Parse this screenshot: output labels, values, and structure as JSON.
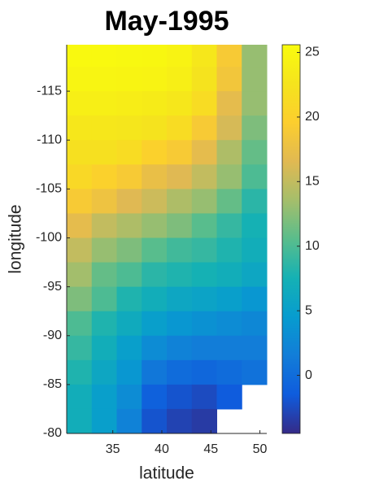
{
  "chart_data": {
    "type": "heatmap",
    "title": "May-1995",
    "xlabel": "latitude",
    "ylabel": "longitude",
    "x": [
      31.6,
      34.1,
      36.7,
      39.2,
      41.8,
      44.3,
      46.9,
      49.4
    ],
    "y": [
      -118.75,
      -116.25,
      -113.75,
      -111.25,
      -108.75,
      -106.25,
      -103.75,
      -101.25,
      -98.75,
      -96.25,
      -93.75,
      -91.25,
      -88.75,
      -86.25,
      -83.75,
      -81.25
    ],
    "z": [
      [
        25.3,
        25.3,
        25.2,
        25.1,
        24.5,
        23,
        19,
        13
      ],
      [
        24.8,
        24.8,
        24.7,
        24.6,
        24,
        22.5,
        18.5,
        13
      ],
      [
        24,
        24,
        23.8,
        23.5,
        23,
        21.5,
        17,
        13
      ],
      [
        23,
        23,
        22.8,
        22.5,
        21.5,
        19,
        16,
        12
      ],
      [
        22,
        22,
        21.5,
        20,
        19,
        17,
        14,
        11
      ],
      [
        21,
        20,
        19,
        17.5,
        16.5,
        15,
        13,
        10
      ],
      [
        19,
        18,
        16.5,
        15.5,
        14,
        13,
        11,
        8.5
      ],
      [
        17,
        15,
        14,
        13,
        12,
        10.5,
        9,
        7.5
      ],
      [
        15,
        13,
        12,
        10.5,
        9.5,
        9,
        8,
        7
      ],
      [
        13.5,
        11,
        10,
        8.5,
        8,
        7.5,
        7,
        6
      ],
      [
        12,
        10,
        8,
        7,
        6,
        5.5,
        5,
        4
      ],
      [
        10,
        8,
        6.5,
        5,
        4,
        3.5,
        3,
        2.5
      ],
      [
        9,
        7,
        5,
        3,
        2,
        1.5,
        1.5,
        1.5
      ],
      [
        8,
        6,
        4,
        1,
        0,
        -0.5,
        0,
        0.5
      ],
      [
        7,
        5,
        3,
        -1,
        -2,
        -2.5,
        -1.5,
        null
      ],
      [
        7,
        5,
        2,
        -2,
        -3,
        -3.5,
        null,
        null
      ]
    ],
    "xlim": [
      30.3,
      50.7
    ],
    "ylim": [
      -119.75,
      -80
    ],
    "y_reversed": true,
    "xticks": [
      35,
      40,
      45,
      50
    ],
    "yticks": [
      -115,
      -110,
      -105,
      -100,
      -95,
      -90,
      -85,
      -80
    ],
    "colormap": "parula",
    "clim": [
      -4.5,
      25.6
    ],
    "cticks": [
      0,
      5,
      10,
      15,
      20,
      25
    ]
  }
}
